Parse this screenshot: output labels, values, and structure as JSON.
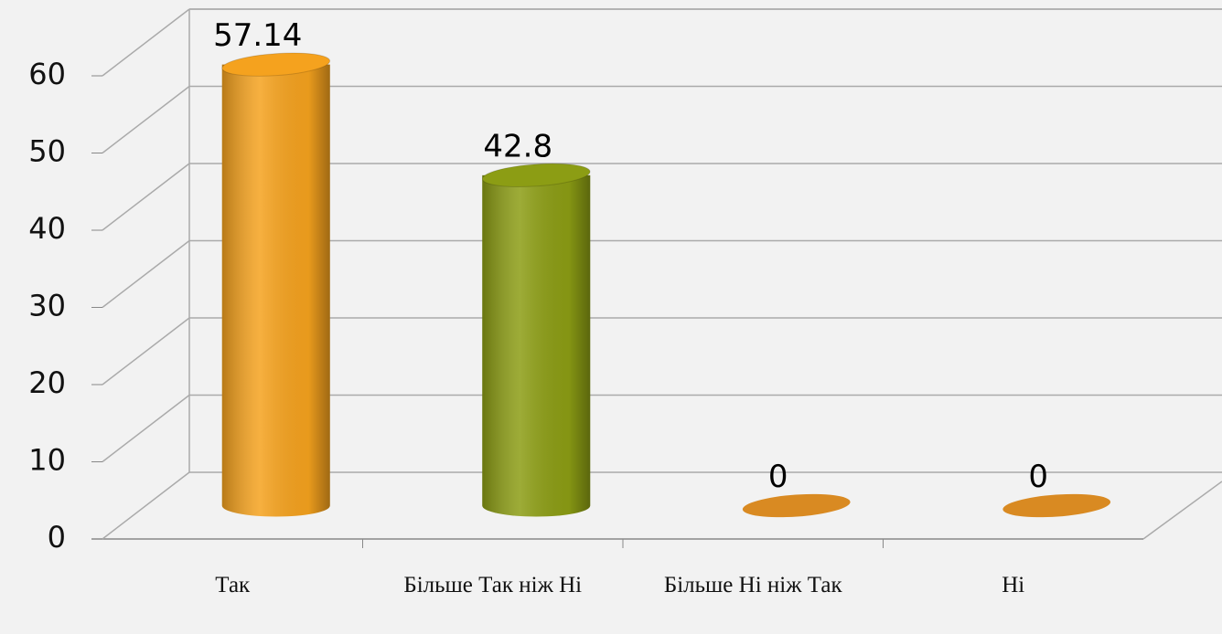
{
  "chart_data": {
    "type": "bar3d",
    "categories": [
      "Так",
      "Більше Так ніж Ні",
      "Більше Ні ніж Так",
      "Ні"
    ],
    "values": [
      57.14,
      42.8,
      0,
      0
    ],
    "colors": [
      "#f5a21e",
      "#8c9d14",
      "#d98a22",
      "#d98a22"
    ],
    "ylim": [
      0,
      60
    ],
    "yticks": [
      0,
      10,
      20,
      30,
      40,
      50,
      60
    ],
    "grid": true
  }
}
